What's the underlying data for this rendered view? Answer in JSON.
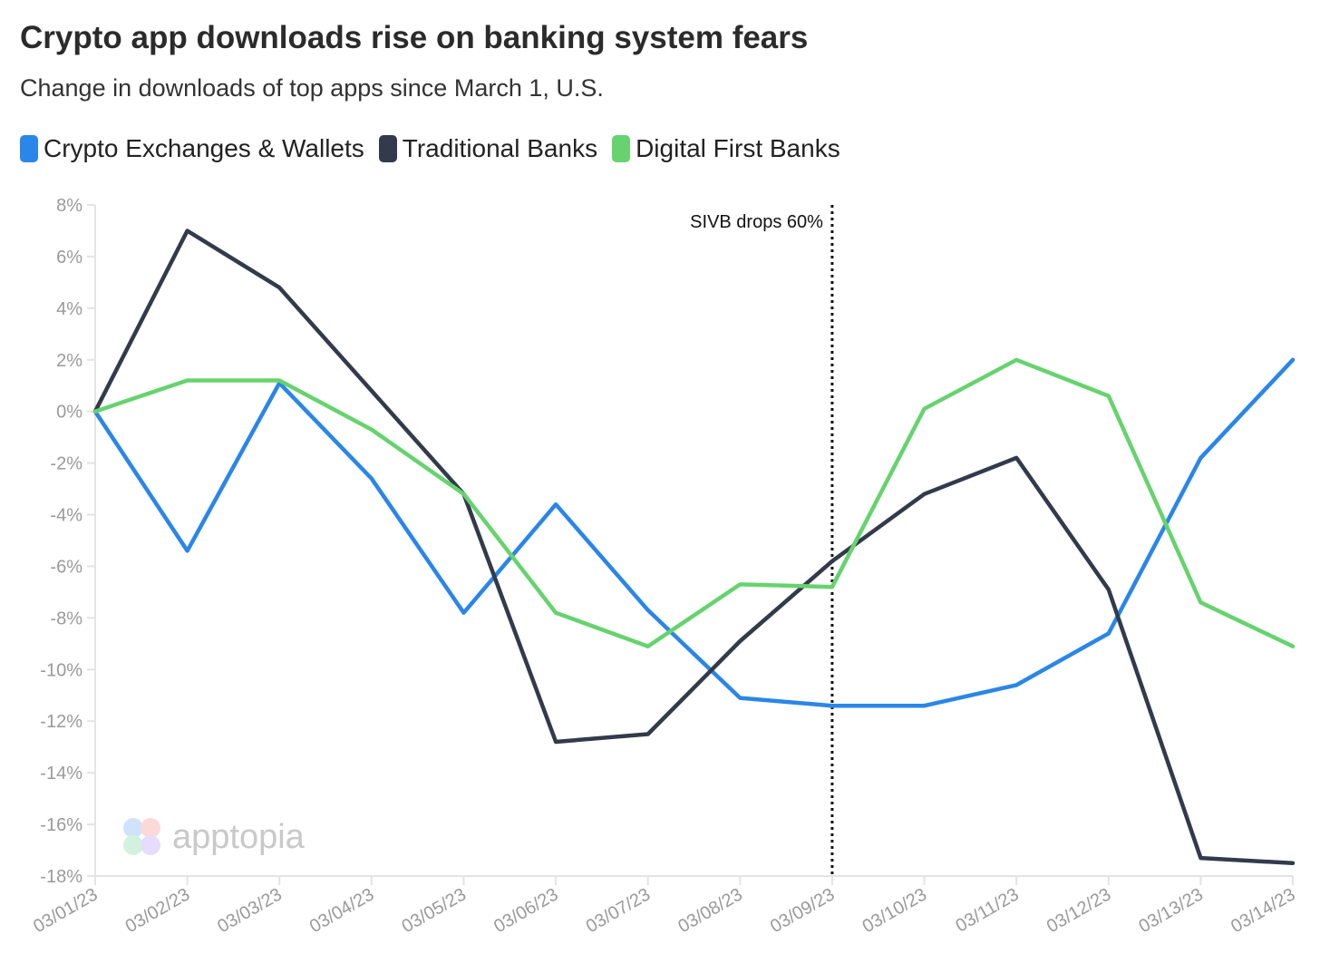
{
  "header": {
    "title": "Crypto app downloads rise on banking system fears",
    "subtitle": "Change in downloads of top apps since March 1, U.S."
  },
  "watermark": {
    "text": "apptopia"
  },
  "chart_data": {
    "type": "line",
    "title": "Crypto app downloads rise on banking system fears",
    "subtitle": "Change in downloads of top apps since March 1, U.S.",
    "xlabel": "",
    "ylabel": "",
    "x": [
      "03/01/23",
      "03/02/23",
      "03/03/23",
      "03/04/23",
      "03/05/23",
      "03/06/23",
      "03/07/23",
      "03/08/23",
      "03/09/23",
      "03/10/23",
      "03/11/23",
      "03/12/23",
      "03/13/23",
      "03/14/23"
    ],
    "ylim": [
      -18,
      8
    ],
    "yticks": [
      8,
      6,
      4,
      2,
      0,
      -2,
      -4,
      -6,
      -8,
      -10,
      -12,
      -14,
      -16,
      -18
    ],
    "ytick_labels": [
      "8%",
      "6%",
      "4%",
      "2%",
      "0%",
      "-2%",
      "-4%",
      "-6%",
      "-8%",
      "-10%",
      "-12%",
      "-14%",
      "-16%",
      "-18%"
    ],
    "legend_position": "top-left",
    "grid": false,
    "series": [
      {
        "name": "Crypto Exchanges & Wallets",
        "color": "#2a86e8",
        "values": [
          0,
          -5.4,
          1.1,
          -2.6,
          -7.8,
          -3.6,
          -7.7,
          -11.1,
          -11.4,
          -11.4,
          -10.6,
          -8.6,
          -1.8,
          2.0
        ]
      },
      {
        "name": "Traditional Banks",
        "color": "#323a4b",
        "values": [
          0,
          7.0,
          4.8,
          0.8,
          -3.2,
          -12.8,
          -12.5,
          -8.9,
          -5.8,
          -3.2,
          -1.8,
          -6.9,
          -17.3,
          -17.5
        ]
      },
      {
        "name": "Digital First Banks",
        "color": "#66d36e",
        "values": [
          0,
          1.2,
          1.2,
          -0.7,
          -3.2,
          -7.8,
          -9.1,
          -6.7,
          -6.8,
          0.1,
          2.0,
          0.6,
          -7.4,
          -9.1
        ]
      }
    ],
    "annotations": [
      {
        "x": "03/09/23",
        "label": "SIVB drops 60%",
        "style": "dotted-vertical-line"
      }
    ]
  }
}
